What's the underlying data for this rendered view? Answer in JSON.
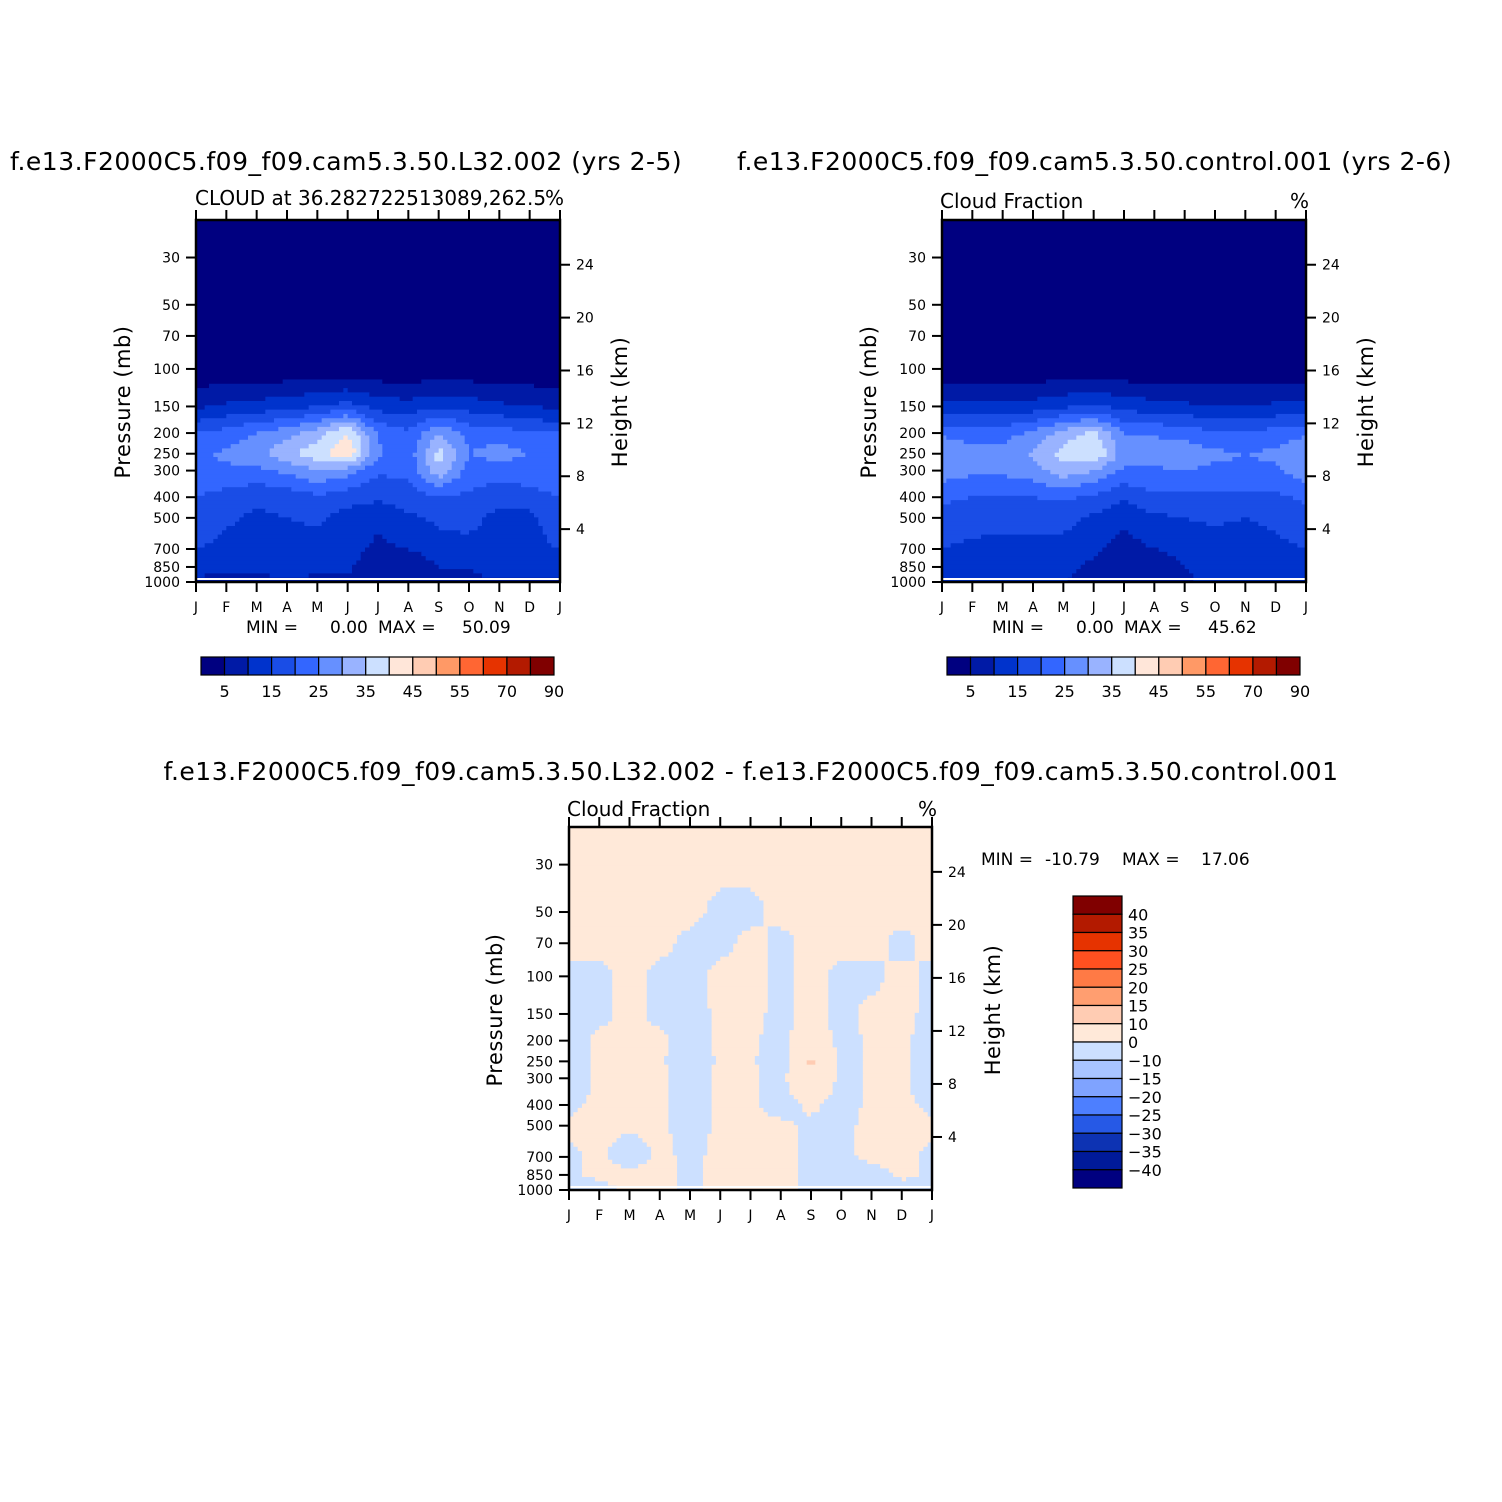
{
  "chart_data": [
    {
      "type": "heatmap",
      "title": "f.e13.F2000C5.f09_f09.cam5.3.50.L32.002 (yrs 2-5)",
      "left_subtitle": "CLOUD at 36.282722513089,262.5",
      "units": "%",
      "xlabel": "",
      "ylabel": "Pressure (mb)",
      "ylabel_right": "Height (km)",
      "x_tick_labels": [
        "J",
        "F",
        "M",
        "A",
        "M",
        "J",
        "J",
        "A",
        "S",
        "O",
        "N",
        "D",
        "J"
      ],
      "y_ticks": [
        30,
        50,
        70,
        100,
        150,
        200,
        250,
        300,
        400,
        500,
        700,
        850,
        1000
      ],
      "y_right_ticks": [
        24,
        20,
        16,
        12,
        8,
        4
      ],
      "ylim": [
        1000,
        30
      ],
      "y_scale": "log",
      "min_label": "MIN =",
      "min_value": "0.00",
      "max_label": "MAX =",
      "max_value": "50.09",
      "colorbar": {
        "orientation": "horizontal",
        "tick_labels": [
          "5",
          "15",
          "25",
          "35",
          "45",
          "55",
          "70",
          "90"
        ],
        "colors": [
          "#000080",
          "#001aa6",
          "#0033cc",
          "#1a4de6",
          "#3366ff",
          "#6690ff",
          "#99b3ff",
          "#cce0ff",
          "#ffe6d9",
          "#ffccb3",
          "#ff9966",
          "#ff6633",
          "#e63300",
          "#b31a00",
          "#800000"
        ]
      },
      "pressure_levels": [
        1000,
        850,
        700,
        500,
        400,
        300,
        250,
        200,
        150,
        100,
        70,
        50,
        30
      ],
      "months": [
        "Jan",
        "Feb",
        "Mar",
        "Apr",
        "May",
        "Jun",
        "Jul",
        "Aug",
        "Sep",
        "Oct",
        "Nov",
        "Dec",
        "Jan"
      ],
      "z": [
        [
          8,
          8,
          8,
          9,
          9,
          9,
          7,
          7,
          8,
          9,
          9,
          9,
          8
        ],
        [
          13,
          12,
          12,
          12,
          11,
          11,
          6,
          5,
          10,
          10,
          13,
          12,
          13
        ],
        [
          15,
          13,
          12,
          13,
          12,
          12,
          9,
          10,
          13,
          13,
          13,
          13,
          15
        ],
        [
          20,
          16,
          14,
          15,
          16,
          13,
          11,
          14,
          16,
          17,
          13,
          13,
          20
        ],
        [
          20,
          18,
          16,
          17,
          19,
          17,
          16,
          18,
          19,
          19,
          17,
          18,
          20
        ],
        [
          24,
          24,
          24,
          26,
          30,
          27,
          21,
          21,
          34,
          23,
          22,
          23,
          24
        ],
        [
          24,
          26,
          28,
          34,
          38,
          45,
          26,
          22,
          37,
          25,
          27,
          25,
          24
        ],
        [
          20,
          22,
          25,
          28,
          33,
          40,
          24,
          21,
          30,
          23,
          23,
          20,
          20
        ],
        [
          9,
          11,
          12,
          13,
          15,
          17,
          13,
          12,
          14,
          13,
          11,
          10,
          9
        ],
        [
          1,
          1,
          1,
          1,
          1,
          1,
          1,
          1,
          1,
          1,
          1,
          1,
          1
        ],
        [
          0,
          0,
          0,
          0,
          0,
          0,
          0,
          0,
          0,
          0,
          0,
          0,
          0
        ],
        [
          0,
          0,
          0,
          0,
          0,
          0,
          0,
          0,
          0,
          0,
          0,
          0,
          0
        ],
        [
          0,
          0,
          0,
          0,
          0,
          0,
          0,
          0,
          0,
          0,
          0,
          0,
          0
        ]
      ]
    },
    {
      "type": "heatmap",
      "title": "f.e13.F2000C5.f09_f09.cam5.3.50.control.001 (yrs 2-6)",
      "left_subtitle": "Cloud Fraction",
      "units": "%",
      "xlabel": "",
      "ylabel": "Pressure (mb)",
      "ylabel_right": "Height (km)",
      "x_tick_labels": [
        "J",
        "F",
        "M",
        "A",
        "M",
        "J",
        "J",
        "A",
        "S",
        "O",
        "N",
        "D",
        "J"
      ],
      "y_ticks": [
        30,
        50,
        70,
        100,
        150,
        200,
        250,
        300,
        400,
        500,
        700,
        850,
        1000
      ],
      "y_right_ticks": [
        24,
        20,
        16,
        12,
        8,
        4
      ],
      "ylim": [
        1000,
        30
      ],
      "y_scale": "log",
      "min_label": "MIN =",
      "min_value": "0.00",
      "max_label": "MAX =",
      "max_value": "45.62",
      "colorbar": {
        "orientation": "horizontal",
        "tick_labels": [
          "5",
          "15",
          "25",
          "35",
          "45",
          "55",
          "70",
          "90"
        ],
        "colors": [
          "#000080",
          "#001aa6",
          "#0033cc",
          "#1a4de6",
          "#3366ff",
          "#6690ff",
          "#99b3ff",
          "#cce0ff",
          "#ffe6d9",
          "#ffccb3",
          "#ff9966",
          "#ff6633",
          "#e63300",
          "#b31a00",
          "#800000"
        ]
      },
      "pressure_levels": [
        1000,
        850,
        700,
        500,
        400,
        300,
        250,
        200,
        150,
        100,
        70,
        50,
        30
      ],
      "months": [
        "Jan",
        "Feb",
        "Mar",
        "Apr",
        "May",
        "Jun",
        "Jul",
        "Aug",
        "Sep",
        "Oct",
        "Nov",
        "Dec",
        "Jan"
      ],
      "z": [
        [
          11,
          11,
          10,
          10,
          10,
          9,
          6,
          7,
          9,
          12,
          12,
          11,
          11
        ],
        [
          13,
          12,
          12,
          12,
          11,
          9,
          6,
          8,
          10,
          11,
          12,
          12,
          13
        ],
        [
          15,
          14,
          13,
          13,
          13,
          11,
          8,
          10,
          11,
          12,
          12,
          14,
          15
        ],
        [
          18,
          17,
          17,
          17,
          17,
          14,
          11,
          14,
          15,
          16,
          15,
          16,
          18
        ],
        [
          21,
          20,
          20,
          20,
          21,
          19,
          16,
          19,
          19,
          19,
          19,
          19,
          21
        ],
        [
          28,
          26,
          26,
          28,
          33,
          30,
          24,
          24,
          25,
          24,
          24,
          24,
          28
        ],
        [
          30,
          27,
          27,
          31,
          37,
          41,
          27,
          29,
          28,
          26,
          25,
          26,
          30
        ],
        [
          24,
          22,
          23,
          26,
          32,
          36,
          25,
          24,
          23,
          21,
          21,
          22,
          24
        ],
        [
          11,
          11,
          11,
          12,
          14,
          16,
          13,
          12,
          11,
          10,
          10,
          11,
          11
        ],
        [
          1,
          1,
          1,
          1,
          1,
          1,
          1,
          1,
          1,
          1,
          1,
          1,
          1
        ],
        [
          0,
          0,
          0,
          0,
          0,
          0,
          0,
          0,
          0,
          0,
          0,
          0,
          0
        ],
        [
          0,
          0,
          0,
          0,
          0,
          0,
          0,
          0,
          0,
          0,
          0,
          0,
          0
        ],
        [
          0,
          0,
          0,
          0,
          0,
          0,
          0,
          0,
          0,
          0,
          0,
          0,
          0
        ]
      ]
    },
    {
      "type": "heatmap",
      "title": "f.e13.F2000C5.f09_f09.cam5.3.50.L32.002 - f.e13.F2000C5.f09_f09.cam5.3.50.control.001",
      "left_subtitle": "Cloud Fraction",
      "units": "%",
      "xlabel": "",
      "ylabel": "Pressure (mb)",
      "ylabel_right": "Height (km)",
      "x_tick_labels": [
        "J",
        "F",
        "M",
        "A",
        "M",
        "J",
        "J",
        "A",
        "S",
        "O",
        "N",
        "D",
        "J"
      ],
      "y_ticks": [
        30,
        50,
        70,
        100,
        150,
        200,
        250,
        300,
        400,
        500,
        700,
        850,
        1000
      ],
      "y_right_ticks": [
        24,
        20,
        16,
        12,
        8,
        4
      ],
      "ylim": [
        1000,
        30
      ],
      "y_scale": "log",
      "min_label": "MIN =",
      "min_value": "-10.79",
      "max_label": "MAX =",
      "max_value": "17.06",
      "colorbar": {
        "orientation": "vertical",
        "tick_labels": [
          "40",
          "35",
          "30",
          "25",
          "20",
          "15",
          "10",
          "0",
          "-10",
          "-15",
          "-20",
          "-25",
          "-30",
          "-35",
          "-40"
        ],
        "colors": [
          "#800000",
          "#b31a00",
          "#e63300",
          "#ff5020",
          "#ff7a45",
          "#ff9e70",
          "#ffccb3",
          "#ffe9d9",
          "#cce0ff",
          "#a8c4ff",
          "#7fa3ff",
          "#4d7fff",
          "#2659e6",
          "#0d33b3",
          "#001a99",
          "#000080"
        ]
      },
      "pressure_levels": [
        1000,
        850,
        700,
        500,
        400,
        300,
        250,
        200,
        150,
        100,
        70,
        50,
        30
      ],
      "months": [
        "Jan",
        "Feb",
        "Mar",
        "Apr",
        "May",
        "Jun",
        "Jul",
        "Aug",
        "Sep",
        "Oct",
        "Nov",
        "Dec",
        "Jan"
      ],
      "z": [
        [
          -3,
          -2,
          1,
          1,
          -1,
          1,
          1,
          1,
          -1,
          -3,
          -4,
          -2,
          -3
        ],
        [
          -1,
          1,
          2,
          1,
          -1,
          1,
          1,
          1,
          -1,
          -2,
          -2,
          1,
          -1
        ],
        [
          -1,
          1,
          -3,
          1,
          -1,
          1,
          1,
          1,
          -1,
          -1,
          1,
          1,
          -1
        ],
        [
          1,
          1,
          1,
          1,
          -2,
          1,
          1,
          1,
          -1,
          -1,
          1,
          1,
          1
        ],
        [
          -1,
          1,
          1,
          1,
          -2,
          1,
          1,
          -2,
          1,
          -2,
          1,
          1,
          -1
        ],
        [
          -3,
          1,
          1,
          1,
          -2,
          1,
          1,
          -2,
          8,
          -2,
          1,
          1,
          -3
        ],
        [
          -2,
          1,
          1,
          1,
          -4,
          1,
          1,
          -4,
          12,
          -2,
          1,
          1,
          -2
        ],
        [
          -2,
          1,
          1,
          1,
          -2,
          1,
          1,
          -2,
          4,
          -2,
          1,
          1,
          -2
        ],
        [
          -1,
          -1,
          1,
          -1,
          -2,
          1,
          1,
          -1,
          1,
          -1,
          1,
          1,
          -1
        ],
        [
          -1,
          -1,
          1,
          -1,
          -1,
          1,
          1,
          -1,
          1,
          -1,
          -1,
          1,
          -1
        ],
        [
          1,
          1,
          1,
          1,
          -1,
          -1,
          1,
          -1,
          1,
          1,
          1,
          -1,
          1
        ],
        [
          1,
          1,
          1,
          1,
          1,
          -1,
          -1,
          1,
          1,
          1,
          1,
          1,
          1
        ],
        [
          1,
          1,
          1,
          1,
          1,
          1,
          1,
          1,
          1,
          1,
          1,
          1,
          1
        ]
      ]
    }
  ]
}
